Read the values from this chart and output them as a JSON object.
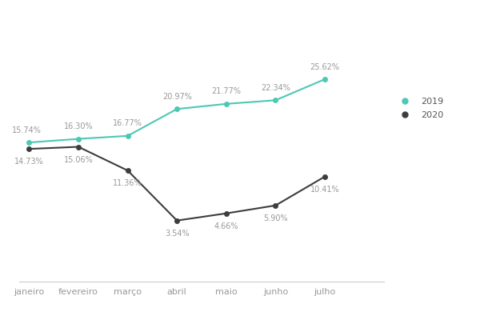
{
  "months": [
    "janeiro",
    "fevereiro",
    "março",
    "abril",
    "maio",
    "junho",
    "julho"
  ],
  "series_2019": [
    15.74,
    16.3,
    16.77,
    20.97,
    21.77,
    22.34,
    25.62
  ],
  "series_2020": [
    14.73,
    15.06,
    11.36,
    3.54,
    4.66,
    5.9,
    10.41
  ],
  "labels_2019": [
    "15.74%",
    "16.30%",
    "16.77%",
    "20.97%",
    "21.77%",
    "22.34%",
    "25.62%"
  ],
  "labels_2020": [
    "14.73%",
    "15.06%",
    "11.36%",
    "3.54%",
    "4.66%",
    "5.90%",
    "10.41%"
  ],
  "color_2019": "#4DC8B4",
  "color_2020": "#3d3d3d",
  "legend_labels": [
    "2019",
    "2020"
  ],
  "background_color": "#ffffff",
  "label_fontsize": 7.0,
  "axis_label_fontsize": 8.0,
  "legend_fontsize": 8.0,
  "ylim": [
    -6,
    34
  ],
  "xlim": [
    -0.2,
    7.2
  ]
}
